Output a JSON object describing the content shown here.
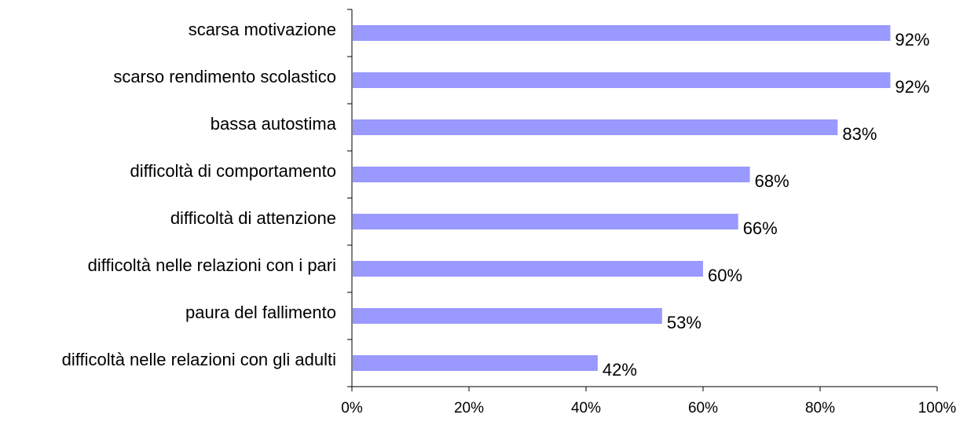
{
  "chart_data": {
    "type": "bar",
    "orientation": "horizontal",
    "categories": [
      "scarsa motivazione",
      "scarso rendimento scolastico",
      "bassa autostima",
      "difficoltà di comportamento",
      "difficoltà di attenzione",
      "difficoltà nelle relazioni con i pari",
      "paura del fallimento",
      "difficoltà nelle relazioni con gli adulti"
    ],
    "values": [
      92,
      92,
      83,
      68,
      66,
      60,
      53,
      42
    ],
    "value_labels": [
      "92%",
      "92%",
      "83%",
      "68%",
      "66%",
      "60%",
      "53%",
      "42%"
    ],
    "xlim": [
      0,
      100
    ],
    "x_ticks": [
      "0%",
      "20%",
      "40%",
      "60%",
      "80%",
      "100%"
    ],
    "title": "",
    "xlabel": "",
    "ylabel": "",
    "grid": false,
    "legend": "none",
    "bar_color": "#9999ff"
  }
}
